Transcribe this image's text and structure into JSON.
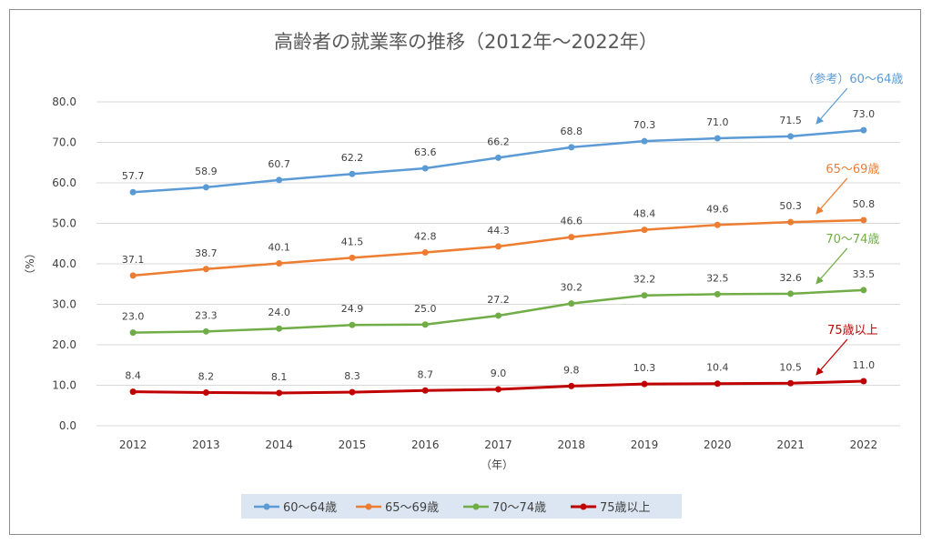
{
  "chart_data": {
    "type": "line",
    "title": "高齢者の就業率の推移（2012年〜2022年）",
    "xlabel": "（年）",
    "ylabel": "（%）",
    "ylim": [
      0,
      80
    ],
    "ytick_step": 10,
    "ytick_labels": [
      "0.0",
      "10.0",
      "20.0",
      "30.0",
      "40.0",
      "50.0",
      "60.0",
      "70.0",
      "80.0"
    ],
    "grid": true,
    "legend_position": "bottom",
    "categories": [
      "2012",
      "2013",
      "2014",
      "2015",
      "2016",
      "2017",
      "2018",
      "2019",
      "2020",
      "2021",
      "2022"
    ],
    "series": [
      {
        "name": "60〜64歳",
        "color": "#5b9bd5",
        "values": [
          57.7,
          58.9,
          60.7,
          62.2,
          63.6,
          66.2,
          68.8,
          70.3,
          71.0,
          71.5,
          73.0
        ]
      },
      {
        "name": "65〜69歳",
        "color": "#ed7d31",
        "values": [
          37.1,
          38.7,
          40.1,
          41.5,
          42.8,
          44.3,
          46.6,
          48.4,
          49.6,
          50.3,
          50.8
        ]
      },
      {
        "name": "70〜74歳",
        "color": "#70ad47",
        "values": [
          23.0,
          23.3,
          24.0,
          24.9,
          25.0,
          27.2,
          30.2,
          32.2,
          32.5,
          32.6,
          33.5
        ]
      },
      {
        "name": "75歳以上",
        "color": "#c00000",
        "values": [
          8.4,
          8.2,
          8.1,
          8.3,
          8.7,
          9.0,
          9.8,
          10.3,
          10.4,
          10.5,
          11.0
        ]
      }
    ],
    "annotations": [
      {
        "text": "（参考）60〜64歳",
        "series": 0,
        "color": "#5b9bd5"
      },
      {
        "text": "65〜69歳",
        "series": 1,
        "color": "#ed7d31"
      },
      {
        "text": "70〜74歳",
        "series": 2,
        "color": "#70ad47"
      },
      {
        "text": "75歳以上",
        "series": 3,
        "color": "#c00000"
      }
    ]
  }
}
